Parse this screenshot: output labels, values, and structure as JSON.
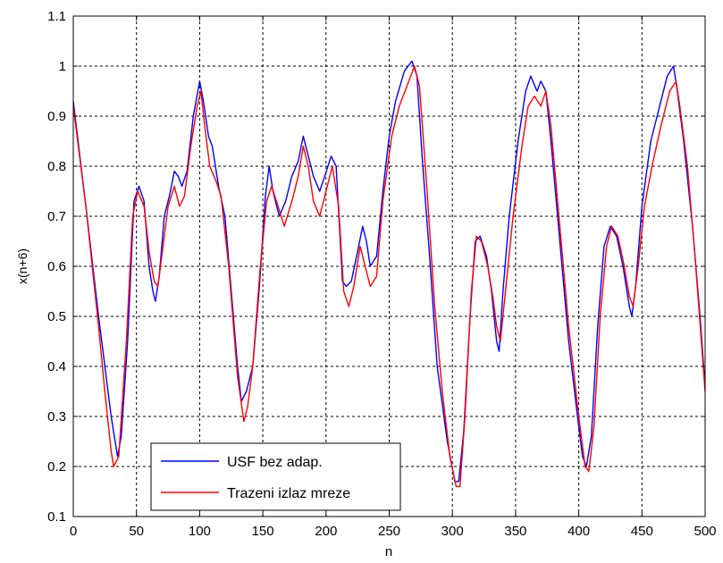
{
  "chart_data": {
    "type": "line",
    "title": "",
    "xlabel": "n",
    "ylabel": "x(n+6)",
    "xlim": [
      0,
      500
    ],
    "ylim": [
      0.1,
      1.1
    ],
    "x_ticks": [
      0,
      50,
      100,
      150,
      200,
      250,
      300,
      350,
      400,
      450,
      500
    ],
    "y_ticks": [
      0.1,
      0.2,
      0.3,
      0.4,
      0.5,
      0.6,
      0.7,
      0.8,
      0.9,
      1.0,
      1.1
    ],
    "x_tick_labels": [
      "0",
      "50",
      "100",
      "150",
      "200",
      "250",
      "300",
      "350",
      "400",
      "450",
      "500"
    ],
    "y_tick_labels": [
      "0.1",
      "0.2",
      "0.3",
      "0.4",
      "0.5",
      "0.6",
      "0.7",
      "0.8",
      "0.9",
      "1",
      "1.1"
    ],
    "grid": true,
    "legend_position": "bottom-left",
    "series": [
      {
        "name": "USF bez adap.",
        "color": "#0000ff",
        "points": [
          [
            0,
            0.93
          ],
          [
            10,
            0.72
          ],
          [
            20,
            0.5
          ],
          [
            30,
            0.3
          ],
          [
            35,
            0.22
          ],
          [
            38,
            0.26
          ],
          [
            43,
            0.45
          ],
          [
            48,
            0.73
          ],
          [
            52,
            0.76
          ],
          [
            56,
            0.73
          ],
          [
            60,
            0.6
          ],
          [
            63,
            0.55
          ],
          [
            65,
            0.53
          ],
          [
            68,
            0.58
          ],
          [
            72,
            0.7
          ],
          [
            76,
            0.74
          ],
          [
            80,
            0.79
          ],
          [
            83,
            0.78
          ],
          [
            86,
            0.76
          ],
          [
            90,
            0.79
          ],
          [
            95,
            0.9
          ],
          [
            100,
            0.97
          ],
          [
            103,
            0.93
          ],
          [
            107,
            0.86
          ],
          [
            110,
            0.84
          ],
          [
            115,
            0.76
          ],
          [
            120,
            0.7
          ],
          [
            125,
            0.55
          ],
          [
            130,
            0.4
          ],
          [
            133,
            0.33
          ],
          [
            137,
            0.35
          ],
          [
            142,
            0.4
          ],
          [
            147,
            0.55
          ],
          [
            152,
            0.74
          ],
          [
            155,
            0.8
          ],
          [
            158,
            0.75
          ],
          [
            163,
            0.7
          ],
          [
            168,
            0.73
          ],
          [
            173,
            0.78
          ],
          [
            178,
            0.81
          ],
          [
            182,
            0.86
          ],
          [
            186,
            0.82
          ],
          [
            190,
            0.78
          ],
          [
            195,
            0.75
          ],
          [
            199,
            0.78
          ],
          [
            204,
            0.82
          ],
          [
            208,
            0.8
          ],
          [
            213,
            0.57
          ],
          [
            216,
            0.56
          ],
          [
            220,
            0.57
          ],
          [
            225,
            0.63
          ],
          [
            229,
            0.68
          ],
          [
            232,
            0.65
          ],
          [
            235,
            0.6
          ],
          [
            240,
            0.62
          ],
          [
            245,
            0.75
          ],
          [
            250,
            0.86
          ],
          [
            255,
            0.93
          ],
          [
            262,
            0.99
          ],
          [
            268,
            1.01
          ],
          [
            272,
            0.98
          ],
          [
            276,
            0.82
          ],
          [
            282,
            0.62
          ],
          [
            288,
            0.4
          ],
          [
            296,
            0.25
          ],
          [
            302,
            0.17
          ],
          [
            305,
            0.17
          ],
          [
            309,
            0.27
          ],
          [
            314,
            0.5
          ],
          [
            318,
            0.65
          ],
          [
            322,
            0.66
          ],
          [
            327,
            0.62
          ],
          [
            331,
            0.55
          ],
          [
            335,
            0.45
          ],
          [
            337,
            0.43
          ],
          [
            340,
            0.55
          ],
          [
            345,
            0.7
          ],
          [
            352,
            0.85
          ],
          [
            358,
            0.95
          ],
          [
            362,
            0.98
          ],
          [
            367,
            0.95
          ],
          [
            370,
            0.97
          ],
          [
            374,
            0.95
          ],
          [
            378,
            0.85
          ],
          [
            385,
            0.65
          ],
          [
            392,
            0.45
          ],
          [
            399,
            0.3
          ],
          [
            403,
            0.22
          ],
          [
            406,
            0.2
          ],
          [
            410,
            0.26
          ],
          [
            415,
            0.48
          ],
          [
            420,
            0.64
          ],
          [
            425,
            0.68
          ],
          [
            430,
            0.66
          ],
          [
            435,
            0.6
          ],
          [
            440,
            0.52
          ],
          [
            442,
            0.5
          ],
          [
            445,
            0.56
          ],
          [
            450,
            0.72
          ],
          [
            457,
            0.85
          ],
          [
            464,
            0.92
          ],
          [
            470,
            0.98
          ],
          [
            475,
            1.0
          ],
          [
            478,
            0.95
          ],
          [
            483,
            0.85
          ],
          [
            490,
            0.68
          ],
          [
            496,
            0.5
          ],
          [
            500,
            0.36
          ]
        ]
      },
      {
        "name": "Trazeni izlaz mreze",
        "color": "#ff0000",
        "points": [
          [
            0,
            0.92
          ],
          [
            10,
            0.72
          ],
          [
            20,
            0.48
          ],
          [
            25,
            0.35
          ],
          [
            30,
            0.23
          ],
          [
            32,
            0.2
          ],
          [
            36,
            0.22
          ],
          [
            42,
            0.45
          ],
          [
            47,
            0.7
          ],
          [
            51,
            0.75
          ],
          [
            56,
            0.72
          ],
          [
            60,
            0.63
          ],
          [
            64,
            0.57
          ],
          [
            67,
            0.56
          ],
          [
            70,
            0.62
          ],
          [
            75,
            0.72
          ],
          [
            80,
            0.76
          ],
          [
            84,
            0.72
          ],
          [
            88,
            0.74
          ],
          [
            93,
            0.84
          ],
          [
            98,
            0.92
          ],
          [
            101,
            0.95
          ],
          [
            104,
            0.88
          ],
          [
            108,
            0.8
          ],
          [
            113,
            0.77
          ],
          [
            117,
            0.74
          ],
          [
            123,
            0.6
          ],
          [
            130,
            0.38
          ],
          [
            135,
            0.29
          ],
          [
            138,
            0.32
          ],
          [
            142,
            0.4
          ],
          [
            148,
            0.6
          ],
          [
            153,
            0.73
          ],
          [
            157,
            0.76
          ],
          [
            162,
            0.72
          ],
          [
            167,
            0.68
          ],
          [
            173,
            0.73
          ],
          [
            178,
            0.78
          ],
          [
            182,
            0.84
          ],
          [
            186,
            0.8
          ],
          [
            190,
            0.73
          ],
          [
            195,
            0.7
          ],
          [
            200,
            0.75
          ],
          [
            205,
            0.8
          ],
          [
            210,
            0.72
          ],
          [
            214,
            0.55
          ],
          [
            218,
            0.52
          ],
          [
            222,
            0.56
          ],
          [
            227,
            0.64
          ],
          [
            231,
            0.6
          ],
          [
            235,
            0.56
          ],
          [
            240,
            0.58
          ],
          [
            245,
            0.73
          ],
          [
            252,
            0.86
          ],
          [
            258,
            0.92
          ],
          [
            264,
            0.96
          ],
          [
            270,
            1.0
          ],
          [
            274,
            0.96
          ],
          [
            280,
            0.75
          ],
          [
            286,
            0.52
          ],
          [
            292,
            0.35
          ],
          [
            298,
            0.22
          ],
          [
            303,
            0.16
          ],
          [
            306,
            0.16
          ],
          [
            310,
            0.3
          ],
          [
            315,
            0.55
          ],
          [
            319,
            0.66
          ],
          [
            323,
            0.65
          ],
          [
            328,
            0.6
          ],
          [
            332,
            0.54
          ],
          [
            335,
            0.48
          ],
          [
            338,
            0.45
          ],
          [
            342,
            0.55
          ],
          [
            348,
            0.7
          ],
          [
            355,
            0.84
          ],
          [
            360,
            0.92
          ],
          [
            365,
            0.94
          ],
          [
            370,
            0.92
          ],
          [
            374,
            0.95
          ],
          [
            378,
            0.88
          ],
          [
            385,
            0.68
          ],
          [
            392,
            0.48
          ],
          [
            400,
            0.3
          ],
          [
            405,
            0.2
          ],
          [
            408,
            0.19
          ],
          [
            412,
            0.28
          ],
          [
            417,
            0.5
          ],
          [
            422,
            0.64
          ],
          [
            426,
            0.68
          ],
          [
            431,
            0.66
          ],
          [
            436,
            0.6
          ],
          [
            440,
            0.54
          ],
          [
            443,
            0.52
          ],
          [
            447,
            0.6
          ],
          [
            452,
            0.72
          ],
          [
            458,
            0.8
          ],
          [
            465,
            0.88
          ],
          [
            472,
            0.95
          ],
          [
            477,
            0.97
          ],
          [
            480,
            0.92
          ],
          [
            486,
            0.8
          ],
          [
            492,
            0.62
          ],
          [
            497,
            0.45
          ],
          [
            500,
            0.35
          ]
        ]
      }
    ]
  }
}
